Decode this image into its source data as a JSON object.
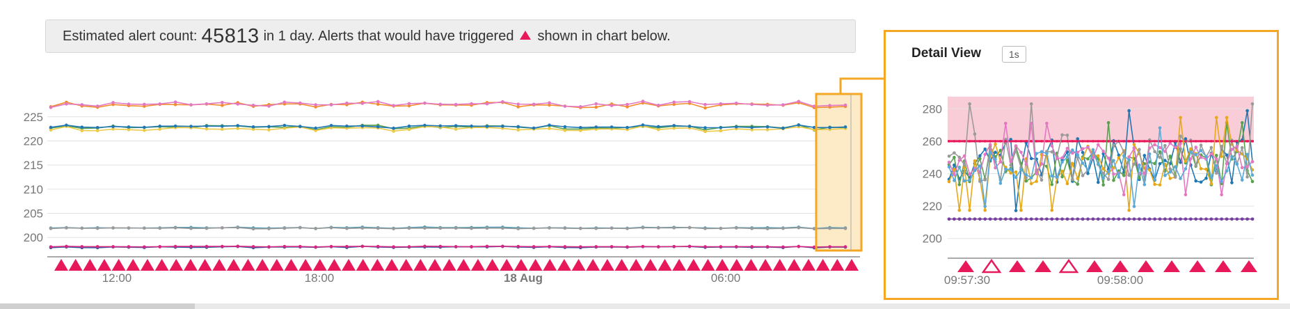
{
  "banner": {
    "prefix": "Estimated alert count:",
    "count": "45813",
    "middle": "in 1 day. Alerts that would have triggered",
    "suffix": "shown in chart below."
  },
  "detail": {
    "title": "Detail View",
    "badge": "1s"
  },
  "colors": {
    "alert": "#e8195a",
    "highlight_border": "#f5a623",
    "highlight_fill": "#fdebc8",
    "threshold_band": "#f9cdd8",
    "grid": "#e2e2e2"
  },
  "chart_data": [
    {
      "type": "line",
      "ylim": [
        197,
        229
      ],
      "y_ticks": [
        200,
        205,
        210,
        215,
        220,
        225
      ],
      "x_tick_labels": [
        "12:00",
        "18:00",
        "18 Aug",
        "06:00"
      ],
      "x_tick_bold": [
        false,
        false,
        true,
        false
      ],
      "n_points": 52,
      "alert_markers": 56,
      "series": [
        {
          "color": "#f28e2b",
          "base": 227.4,
          "amp": 0.6
        },
        {
          "color": "#e377c2",
          "base": 227.6,
          "amp": 0.6
        },
        {
          "color": "#59a14f",
          "base": 222.8,
          "amp": 0.5
        },
        {
          "color": "#edc948",
          "base": 222.5,
          "amp": 0.5
        },
        {
          "color": "#1f77b4",
          "base": 222.9,
          "amp": 0.4
        },
        {
          "color": "#4e9ab3",
          "base": 202.0,
          "amp": 0.15
        },
        {
          "color": "#9a9a9a",
          "base": 201.9,
          "amp": 0.15
        },
        {
          "color": "#2c5aa0",
          "base": 198.0,
          "amp": 0.15
        },
        {
          "color": "#d62780",
          "base": 198.1,
          "amp": 0.1
        }
      ]
    },
    {
      "type": "line",
      "title": "Detail View",
      "ylim": [
        190,
        290
      ],
      "y_ticks": [
        200,
        220,
        240,
        260,
        280
      ],
      "x_tick_labels": [
        "09:57:30",
        "09:58:00"
      ],
      "threshold": 260,
      "n_points": 60,
      "alert_markers": [
        {
          "hollow": false
        },
        {
          "hollow": true
        },
        {
          "hollow": false
        },
        {
          "hollow": false
        },
        {
          "hollow": true
        },
        {
          "hollow": false
        },
        {
          "hollow": false
        },
        {
          "hollow": false
        },
        {
          "hollow": false
        },
        {
          "hollow": false
        },
        {
          "hollow": false
        },
        {
          "hollow": false
        }
      ],
      "series": [
        {
          "color": "#1f77b4",
          "base": 248,
          "amp": 14
        },
        {
          "color": "#59a14f",
          "base": 245,
          "amp": 12
        },
        {
          "color": "#e6a817",
          "base": 246,
          "amp": 13
        },
        {
          "color": "#9a9a9a",
          "base": 250,
          "amp": 15
        },
        {
          "color": "#e377c2",
          "base": 249,
          "amp": 10
        },
        {
          "color": "#5aa9d6",
          "base": 244,
          "amp": 11
        },
        {
          "color": "#d62780",
          "base": 199.5,
          "amp": 1.2
        },
        {
          "color": "#17becf",
          "base": 199.0,
          "amp": 1.0
        },
        {
          "color": "#7b3fa0",
          "base": 196.0,
          "amp": 0.8
        }
      ]
    }
  ]
}
